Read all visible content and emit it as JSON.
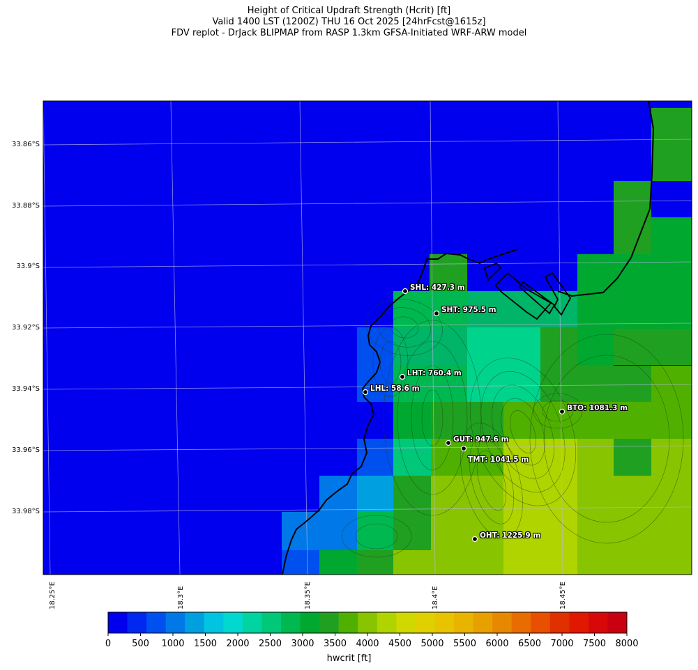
{
  "title": {
    "line1": "Height of Critical Updraft Strength (Hcrit) [ft]",
    "line2": "Valid 1400 LST (1200Z) THU 16 Oct 2025 [24hrFcst@1615z]",
    "line3": "FDV replot - DrJack BLIPMAP from RASP 1.3km GFSA-Initiated WRF-ARW model"
  },
  "axes": {
    "lat_labels": [
      "33.86°S",
      "33.88°S",
      "33.9°S",
      "33.92°S",
      "33.94°S",
      "33.96°S",
      "33.98°S"
    ],
    "lon_labels": [
      "18.25°E",
      "18.3°E",
      "18.35°E",
      "18.4°E",
      "18.45°E"
    ]
  },
  "stations": [
    {
      "id": "SHL",
      "label": "SHL: 427.3 m"
    },
    {
      "id": "SHT",
      "label": "SHT: 975.5 m"
    },
    {
      "id": "LHT",
      "label": "LHT: 760.4 m"
    },
    {
      "id": "LHL",
      "label": "LHL: 58.6 m"
    },
    {
      "id": "BTO",
      "label": "BTO: 1081.3 m"
    },
    {
      "id": "GUT",
      "label": "GUT: 947.6 m"
    },
    {
      "id": "TMT",
      "label": "TMT: 1041.5 m"
    },
    {
      "id": "OHT",
      "label": "OHT: 1225.9 m"
    }
  ],
  "colorbar": {
    "label": "hwcrit [ft]",
    "ticks": [
      "0",
      "500",
      "1000",
      "1500",
      "2000",
      "2500",
      "3000",
      "3500",
      "4000",
      "4500",
      "5000",
      "5500",
      "6000",
      "6500",
      "7000",
      "7500",
      "8000"
    ],
    "colors": [
      "#0000ee",
      "#0028f0",
      "#0050f0",
      "#0078e8",
      "#00a0e0",
      "#00c4e0",
      "#00d8d0",
      "#00d4a0",
      "#00c878",
      "#00b850",
      "#00a830",
      "#20a020",
      "#50b000",
      "#88c400",
      "#b0d400",
      "#d0d800",
      "#e0d000",
      "#e8c400",
      "#e8b400",
      "#e8a000",
      "#e88800",
      "#e86c00",
      "#e85000",
      "#e03000",
      "#e01800",
      "#d80808",
      "#c80010"
    ]
  }
}
